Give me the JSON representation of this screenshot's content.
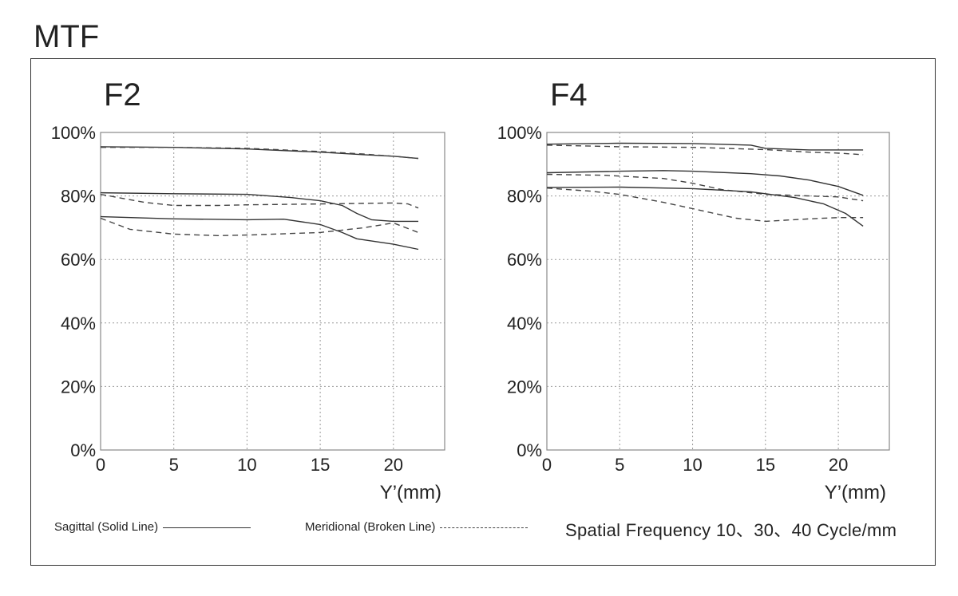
{
  "title": "MTF",
  "legend": {
    "sagittal": "Sagittal (Solid Line)",
    "meridional": "Meridional (Broken Line)",
    "frequency": "Spatial Frequency 10、30、40  Cycle/mm"
  },
  "chart_data": [
    {
      "type": "line",
      "title": "F2",
      "xlabel": "Y’(mm)",
      "ylabel": "",
      "xlim": [
        0,
        23.5
      ],
      "ylim": [
        0,
        100
      ],
      "xticks": [
        "0",
        "5",
        "10",
        "15",
        "20"
      ],
      "yticks": [
        "0%",
        "20%",
        "40%",
        "60%",
        "80%",
        "100%"
      ],
      "grid": true,
      "series": [
        {
          "name": "Sagittal 10",
          "style": "solid",
          "x": [
            0,
            5,
            10,
            15,
            18,
            20,
            21.7
          ],
          "y": [
            95.5,
            95.3,
            94.8,
            93.8,
            93.0,
            92.5,
            91.8
          ]
        },
        {
          "name": "Meridional 10",
          "style": "dashed",
          "x": [
            0,
            5,
            10,
            15,
            18,
            20,
            21.7
          ],
          "y": [
            95.3,
            95.3,
            95.0,
            94.0,
            93.2,
            92.5,
            91.8
          ]
        },
        {
          "name": "Sagittal 30",
          "style": "solid",
          "x": [
            0,
            5,
            10,
            13,
            15,
            16.5,
            17.5,
            18.5,
            20,
            21.7
          ],
          "y": [
            81.0,
            80.7,
            80.5,
            79.5,
            78.5,
            77.0,
            74.5,
            72.5,
            72.0,
            72.0
          ]
        },
        {
          "name": "Meridional 30",
          "style": "dashed",
          "x": [
            0,
            3,
            5,
            8,
            10,
            15,
            20,
            21,
            21.7
          ],
          "y": [
            80.5,
            78.0,
            77.0,
            77.0,
            77.2,
            77.5,
            77.8,
            77.5,
            76.2
          ]
        },
        {
          "name": "Sagittal 40",
          "style": "solid",
          "x": [
            0,
            5,
            10,
            12.5,
            15,
            16.5,
            17.5,
            20,
            21.7
          ],
          "y": [
            73.5,
            72.8,
            72.5,
            72.7,
            71.0,
            68.5,
            66.5,
            64.8,
            63.2
          ]
        },
        {
          "name": "Meridional 40",
          "style": "dashed",
          "x": [
            0,
            2,
            5,
            8,
            10,
            15,
            18,
            20,
            21.7
          ],
          "y": [
            73.0,
            69.5,
            68.0,
            67.5,
            67.7,
            68.5,
            70.0,
            71.5,
            68.5
          ]
        }
      ]
    },
    {
      "type": "line",
      "title": "F4",
      "xlabel": "Y’(mm)",
      "ylabel": "",
      "xlim": [
        0,
        23.5
      ],
      "ylim": [
        0,
        100
      ],
      "xticks": [
        "0",
        "5",
        "10",
        "15",
        "20"
      ],
      "yticks": [
        "0%",
        "20%",
        "40%",
        "60%",
        "80%",
        "100%"
      ],
      "grid": true,
      "series": [
        {
          "name": "Sagittal 10",
          "style": "solid",
          "x": [
            0,
            5,
            10,
            14,
            15,
            18,
            21.7
          ],
          "y": [
            96.3,
            96.6,
            96.5,
            96.0,
            95.0,
            94.5,
            94.5
          ]
        },
        {
          "name": "Meridional 10",
          "style": "dashed",
          "x": [
            0,
            5,
            10,
            15,
            18,
            20,
            21.7
          ],
          "y": [
            96.0,
            95.5,
            95.3,
            94.6,
            93.8,
            93.5,
            93.0
          ]
        },
        {
          "name": "Sagittal 30",
          "style": "solid",
          "x": [
            0,
            5,
            8,
            10,
            14,
            16,
            18,
            20,
            21.7
          ],
          "y": [
            87.3,
            87.8,
            88.0,
            87.8,
            87.0,
            86.3,
            85.0,
            83.0,
            80.2
          ]
        },
        {
          "name": "Meridional 30",
          "style": "dashed",
          "x": [
            0,
            4,
            8,
            10,
            12,
            15,
            18,
            20,
            21.7
          ],
          "y": [
            86.8,
            86.5,
            85.5,
            84.0,
            82.0,
            80.5,
            80.0,
            79.7,
            78.5
          ]
        },
        {
          "name": "Sagittal 40",
          "style": "solid",
          "x": [
            0,
            5,
            10,
            14,
            17,
            19,
            20.5,
            21.7
          ],
          "y": [
            82.7,
            82.8,
            82.3,
            81.3,
            79.5,
            77.5,
            74.5,
            70.5
          ]
        },
        {
          "name": "Meridional 40",
          "style": "dashed",
          "x": [
            0,
            3,
            5,
            8,
            10,
            13,
            15,
            18,
            20,
            21.7
          ],
          "y": [
            82.5,
            81.5,
            80.5,
            78.0,
            76.0,
            73.0,
            72.0,
            72.8,
            73.2,
            73.2
          ]
        }
      ]
    }
  ]
}
